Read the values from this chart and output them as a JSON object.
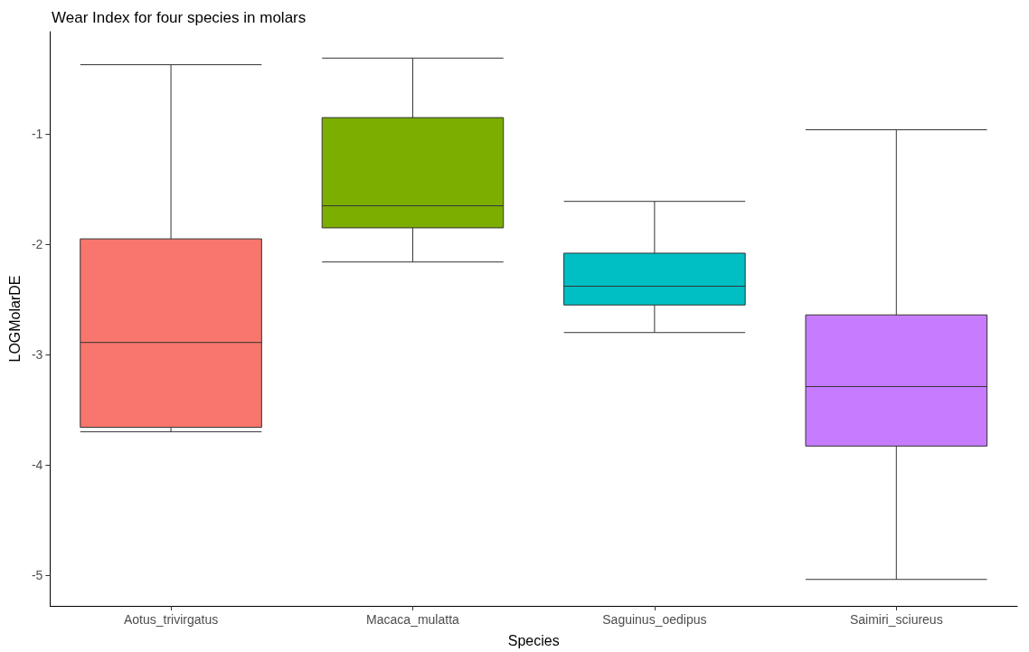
{
  "chart_data": {
    "type": "box",
    "title": "Wear Index for four species in molars",
    "xlabel": "Species",
    "ylabel": "LOGMolarDE",
    "categories": [
      "Aotus_trivirgatus",
      "Macaca_mulatta",
      "Saguinus_oedipus",
      "Saimiri_sciureus"
    ],
    "boxes": [
      {
        "low": -3.7,
        "q1": -3.66,
        "median": -2.89,
        "q3": -1.95,
        "high": -0.37
      },
      {
        "low": -2.16,
        "q1": -1.85,
        "median": -1.65,
        "q3": -0.85,
        "high": -0.31
      },
      {
        "low": -2.8,
        "q1": -2.55,
        "median": -2.38,
        "q3": -2.08,
        "high": -1.61
      },
      {
        "low": -5.04,
        "q1": -3.83,
        "median": -3.29,
        "q3": -2.64,
        "high": -0.96
      }
    ],
    "colors": [
      "#f8766d",
      "#7cae00",
      "#00bfc4",
      "#c77cff"
    ],
    "ylim": [
      -5.28,
      -0.07
    ],
    "yticks": [
      -5,
      -4,
      -3,
      -2,
      -1
    ],
    "grid": false
  }
}
